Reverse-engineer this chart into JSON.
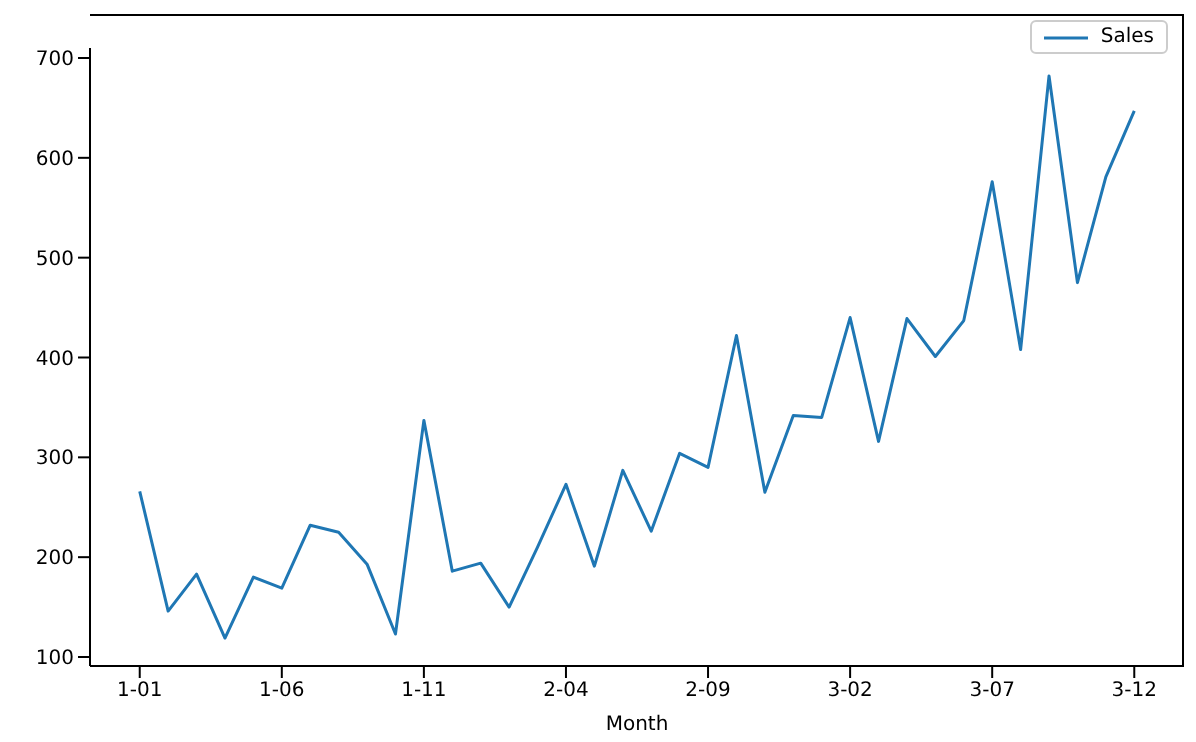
{
  "chart_data": {
    "type": "line",
    "xlabel": "Month",
    "categories": [
      "1-01",
      null,
      null,
      null,
      null,
      "1-06",
      null,
      null,
      null,
      null,
      "1-11",
      null,
      null,
      null,
      null,
      "2-04",
      null,
      null,
      null,
      null,
      "2-09",
      null,
      null,
      null,
      null,
      "3-02",
      null,
      null,
      null,
      null,
      "3-07",
      null,
      null,
      null,
      null,
      "3-12"
    ],
    "series": [
      {
        "name": "Sales",
        "color": "#1f77b4",
        "values": [
          266,
          146,
          183,
          119,
          180,
          169,
          232,
          225,
          193,
          123,
          337,
          186,
          194,
          150,
          210,
          273,
          191,
          287,
          226,
          304,
          290,
          422,
          265,
          342,
          340,
          440,
          316,
          439,
          401,
          437,
          576,
          408,
          682,
          475,
          581,
          647
        ]
      }
    ],
    "ylim": [
      91,
      710
    ],
    "yticks": [
      100,
      200,
      300,
      400,
      500,
      600,
      700
    ],
    "grid": false,
    "legend": "top right",
    "marker": "none",
    "line_style": "solid"
  }
}
